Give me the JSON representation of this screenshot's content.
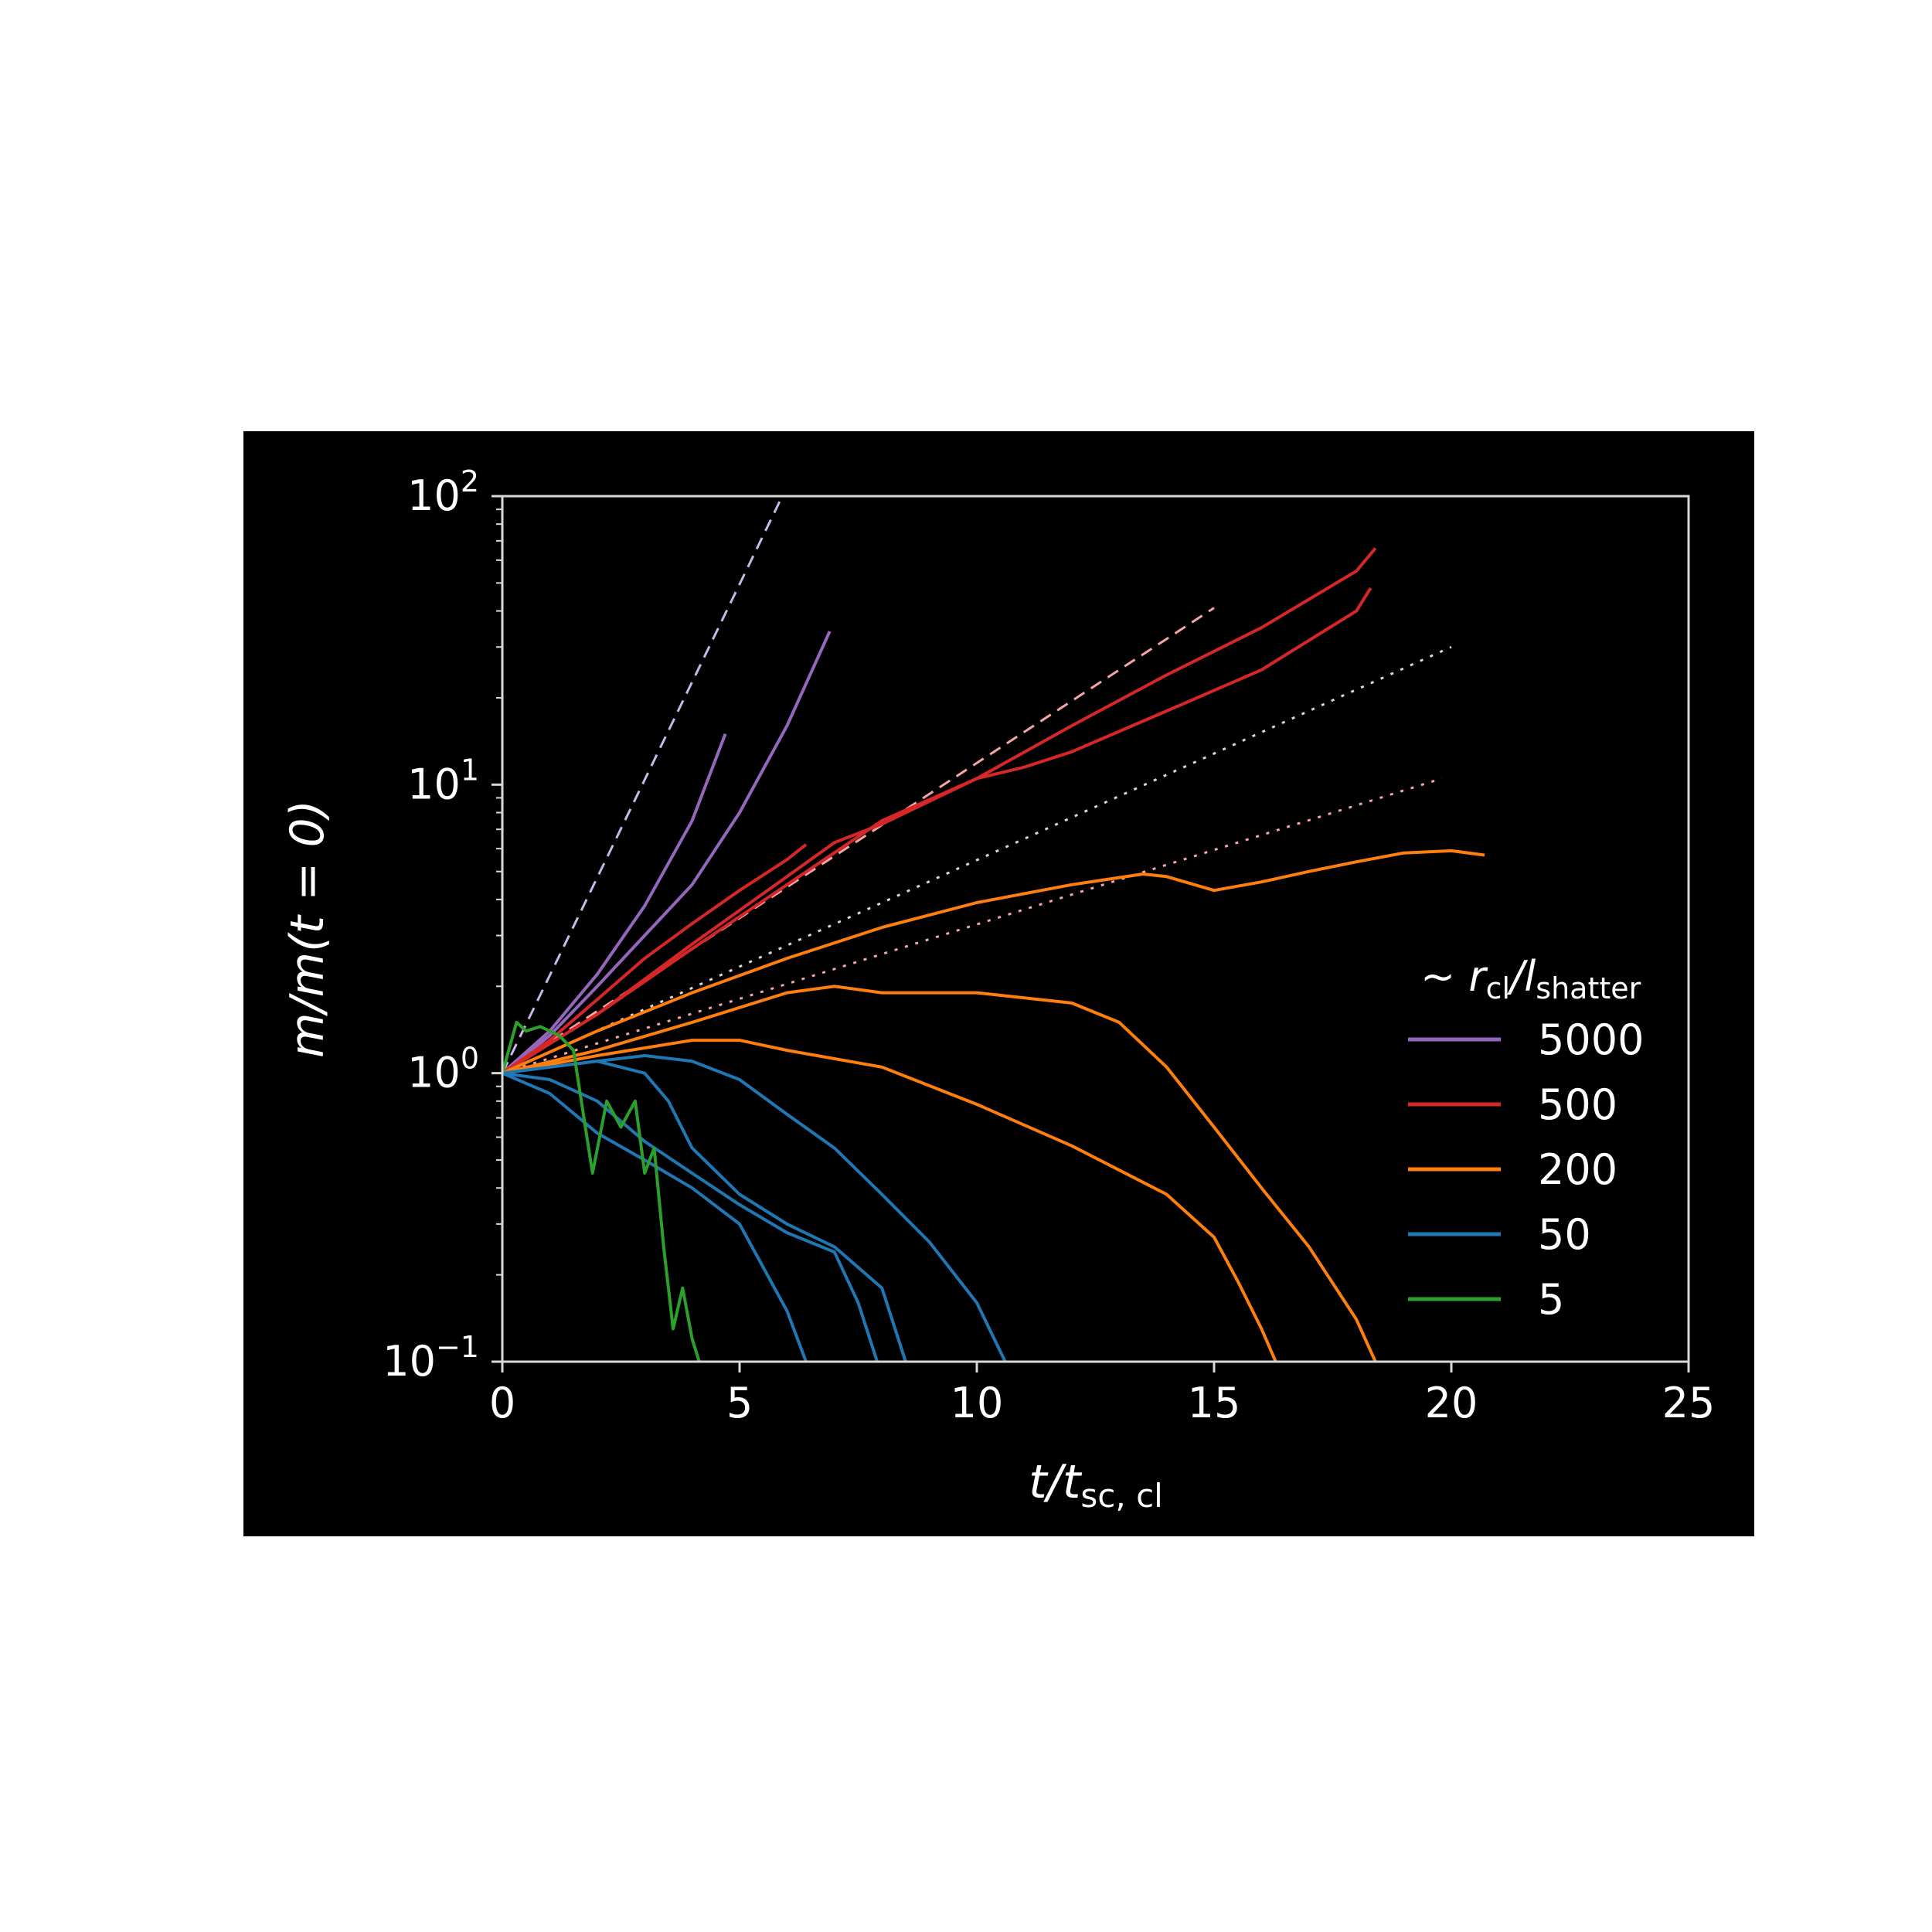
{
  "chart_data": {
    "type": "line",
    "background": "#000000",
    "x_axis": {
      "label_main": "t/t",
      "label_sub": "sc, cl",
      "range": [
        0,
        25
      ],
      "ticks": [
        0,
        5,
        10,
        15,
        20,
        25
      ],
      "tick_labels": [
        "0",
        "5",
        "10",
        "15",
        "20",
        "25"
      ]
    },
    "y_axis": {
      "label_main": "m/m(t = 0)",
      "scale": "log",
      "range": [
        0.1,
        100
      ],
      "ticks": [
        0.1,
        1,
        10,
        100
      ],
      "tick_labels": [
        {
          "base": "10",
          "exp": "−1"
        },
        {
          "base": "10",
          "exp": "0"
        },
        {
          "base": "10",
          "exp": "1"
        },
        {
          "base": "10",
          "exp": "2"
        }
      ]
    },
    "grid": false,
    "legend": {
      "placement": "right",
      "title_prefix": "~ ",
      "title_r": "r",
      "title_r_sub": "cl",
      "title_l": "/l",
      "title_l_sub": "shatter",
      "entries": [
        {
          "label": "5000",
          "color": "#9467bd"
        },
        {
          "label": "500",
          "color": "#d62728"
        },
        {
          "label": "200",
          "color": "#ff7f0e"
        },
        {
          "label": "50",
          "color": "#1f77b4"
        },
        {
          "label": "5",
          "color": "#2ca02c"
        }
      ]
    },
    "series": [
      {
        "group": "5000",
        "color": "#9467bd",
        "x": [
          0,
          1,
          2,
          3,
          4,
          4.7
        ],
        "y": [
          1,
          1.4,
          2.2,
          3.8,
          7.5,
          15
        ]
      },
      {
        "group": "5000",
        "color": "#9467bd",
        "x": [
          0,
          1,
          2,
          3,
          4,
          5,
          6,
          6.9
        ],
        "y": [
          1,
          1.35,
          2,
          3,
          4.5,
          8,
          16,
          34
        ]
      },
      {
        "group": "500",
        "color": "#d62728",
        "x": [
          0,
          1,
          2,
          3,
          4,
          5,
          6,
          6.4
        ],
        "y": [
          1,
          1.3,
          1.8,
          2.5,
          3.3,
          4.3,
          5.5,
          6.2
        ]
      },
      {
        "group": "500",
        "color": "#d62728",
        "x": [
          0,
          2,
          4,
          6,
          7,
          8,
          10,
          12,
          14,
          16,
          18,
          18.4
        ],
        "y": [
          1,
          1.6,
          2.8,
          4.8,
          6.3,
          7.3,
          10.5,
          16,
          24,
          35,
          55,
          66
        ]
      },
      {
        "group": "500",
        "color": "#d62728",
        "x": [
          0,
          2,
          4,
          6,
          8,
          10,
          11,
          12,
          14,
          16,
          18,
          18.3
        ],
        "y": [
          1,
          1.6,
          2.7,
          4.5,
          7.5,
          10.5,
          11.5,
          13,
          18,
          25,
          40,
          48
        ]
      },
      {
        "group": "200",
        "color": "#ff7f0e",
        "x": [
          0,
          2,
          4,
          6,
          8,
          10,
          12,
          13.5,
          14,
          15,
          16,
          17,
          18,
          19,
          20,
          20.7
        ],
        "y": [
          1,
          1.4,
          1.9,
          2.5,
          3.2,
          3.9,
          4.5,
          4.9,
          4.8,
          4.3,
          4.6,
          5.0,
          5.4,
          5.8,
          5.9,
          5.7
        ]
      },
      {
        "group": "200",
        "color": "#ff7f0e",
        "x": [
          0,
          2,
          4,
          6,
          7,
          8,
          10,
          12,
          13,
          14,
          15,
          16,
          17,
          18,
          18.4
        ],
        "y": [
          1,
          1.2,
          1.5,
          1.9,
          2.0,
          1.9,
          1.9,
          1.75,
          1.5,
          1.05,
          0.65,
          0.4,
          0.25,
          0.14,
          0.1
        ]
      },
      {
        "group": "200",
        "color": "#ff7f0e",
        "x": [
          0,
          2,
          4,
          5,
          6,
          8,
          10,
          12,
          14,
          15,
          15.5,
          16,
          16.3
        ],
        "y": [
          1,
          1.15,
          1.3,
          1.3,
          1.2,
          1.05,
          0.78,
          0.56,
          0.38,
          0.27,
          0.19,
          0.13,
          0.1
        ]
      },
      {
        "group": "50",
        "color": "#1f77b4",
        "x": [
          0,
          1,
          2,
          3,
          4,
          5,
          6,
          7,
          8,
          9,
          10,
          10.6
        ],
        "y": [
          1,
          1.05,
          1.1,
          1.15,
          1.1,
          0.95,
          0.72,
          0.55,
          0.38,
          0.26,
          0.16,
          0.1
        ]
      },
      {
        "group": "50",
        "color": "#1f77b4",
        "x": [
          0,
          1,
          2,
          3,
          3.5,
          4,
          5,
          6,
          7,
          8,
          8.5
        ],
        "y": [
          1,
          1.05,
          1.1,
          1.0,
          0.8,
          0.55,
          0.38,
          0.3,
          0.25,
          0.18,
          0.1
        ]
      },
      {
        "group": "50",
        "color": "#1f77b4",
        "x": [
          0,
          1,
          2,
          3,
          4,
          5,
          6,
          7,
          7.5,
          7.9
        ],
        "y": [
          1,
          0.95,
          0.8,
          0.58,
          0.45,
          0.35,
          0.28,
          0.24,
          0.16,
          0.1
        ]
      },
      {
        "group": "50",
        "color": "#1f77b4",
        "x": [
          0,
          1,
          2,
          3,
          4,
          5,
          6,
          6.4
        ],
        "y": [
          1,
          0.85,
          0.62,
          0.5,
          0.4,
          0.3,
          0.15,
          0.1
        ]
      },
      {
        "group": "5",
        "color": "#2ca02c",
        "x": [
          0,
          0.3,
          0.5,
          0.8,
          1.2,
          1.5,
          1.9,
          2.2,
          2.5,
          2.8,
          3.0,
          3.2,
          3.4,
          3.6,
          3.8,
          4.0,
          4.15
        ],
        "y": [
          1,
          1.5,
          1.4,
          1.45,
          1.35,
          1.2,
          0.45,
          0.8,
          0.65,
          0.8,
          0.45,
          0.55,
          0.25,
          0.13,
          0.18,
          0.12,
          0.1
        ]
      }
    ],
    "reference_lines": [
      {
        "style": "dashed",
        "color": "#c8b8e6",
        "x": [
          0,
          5.9
        ],
        "y": [
          1,
          100
        ]
      },
      {
        "style": "dashed",
        "color": "#f4a6a6",
        "x": [
          0,
          15
        ],
        "y": [
          1,
          41
        ]
      },
      {
        "style": "dotted",
        "color": "#d8d8d8",
        "x": [
          0,
          20
        ],
        "y": [
          1,
          30
        ]
      },
      {
        "style": "dotted",
        "color": "#f4a6a6",
        "x": [
          0,
          19.8
        ],
        "y": [
          1,
          10.5
        ]
      }
    ]
  }
}
